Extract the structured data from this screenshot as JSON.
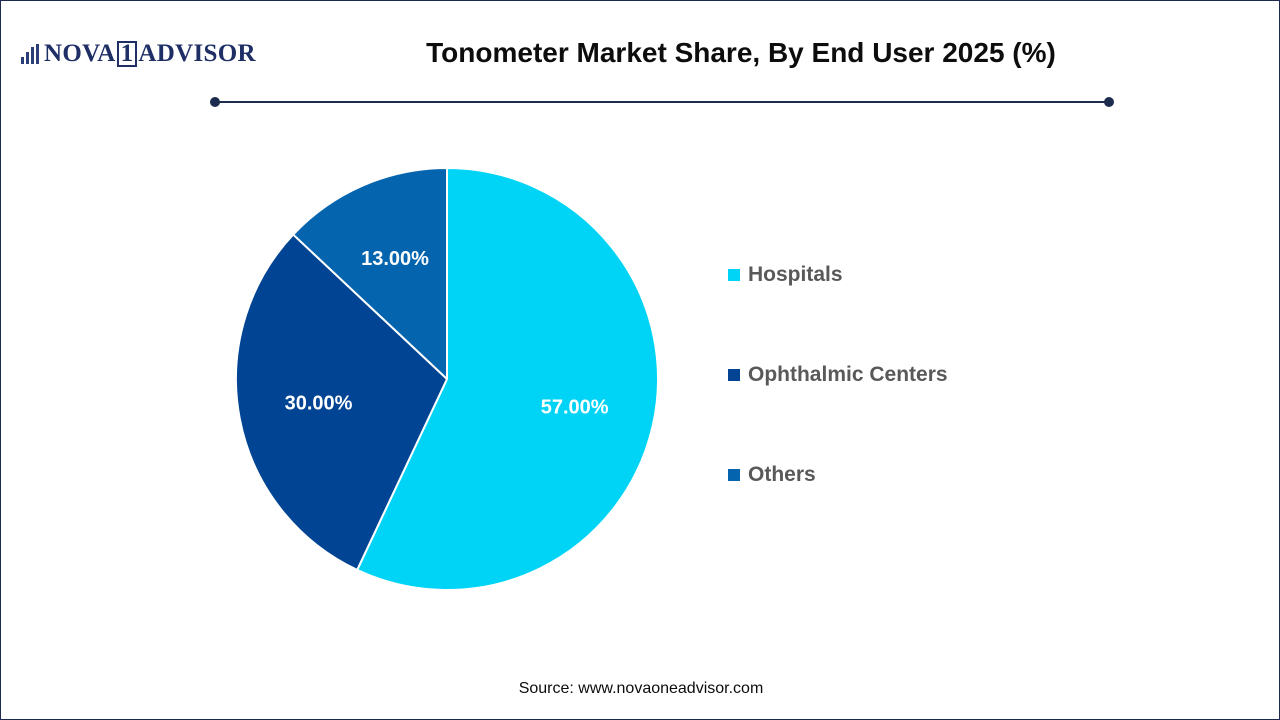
{
  "brand": {
    "logo_prefix": "NOVA",
    "logo_box": "1",
    "logo_suffix": "ADVISOR"
  },
  "chart_data": {
    "type": "pie",
    "title": "Tonometer Market Share, By End User 2025 (%)",
    "categories": [
      "Hospitals",
      "Ophthalmic Centers",
      "Others"
    ],
    "values": [
      57.0,
      30.0,
      13.0
    ],
    "data_labels": [
      "57.00%",
      "30.00%",
      "13.00%"
    ],
    "colors": [
      "#00d4f6",
      "#004493",
      "#0464ae"
    ],
    "start_angle": "12 o'clock",
    "direction": "clockwise",
    "legend_position": "right"
  },
  "source": "Source: www.novaoneadvisor.com"
}
